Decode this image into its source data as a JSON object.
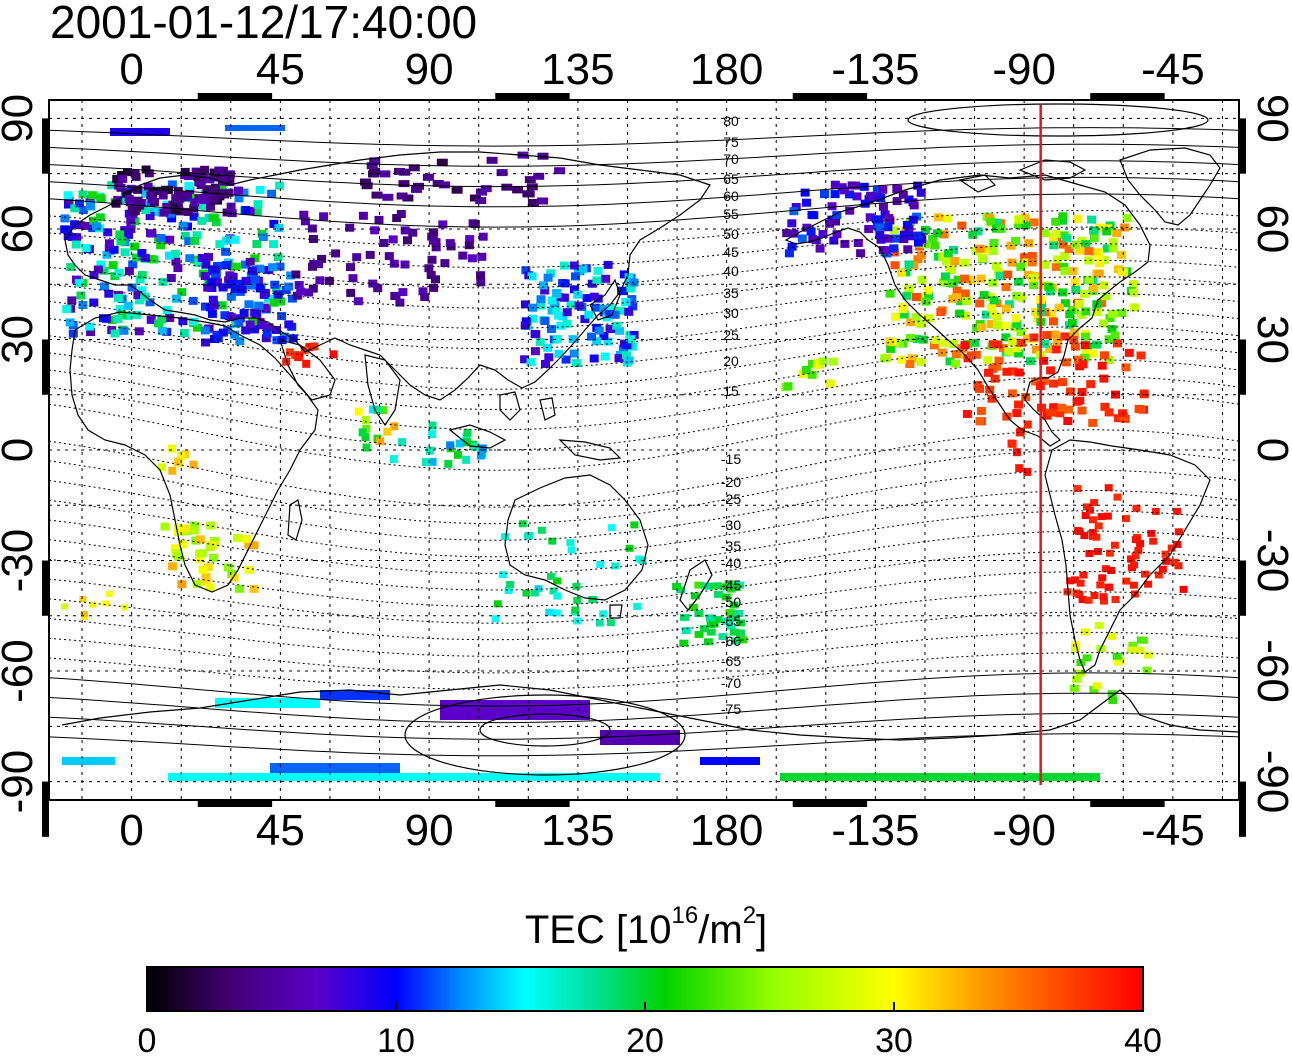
{
  "title": "2001-01-12/17:40:00",
  "map": {
    "lon_ticks_top": [
      "0",
      "45",
      "90",
      "135",
      "180",
      "-135",
      "-90",
      "-45"
    ],
    "lon_ticks_bottom": [
      "0",
      "45",
      "90",
      "135",
      "180",
      "-135",
      "-90",
      "-45"
    ],
    "lat_ticks_left": [
      "90",
      "60",
      "30",
      "0",
      "-30",
      "-60",
      "-90"
    ],
    "lat_ticks_right": [
      "90",
      "60",
      "30",
      "0",
      "-30",
      "-60",
      "-90"
    ],
    "lon_range": [
      -25,
      335
    ],
    "lat_range": [
      -95,
      95
    ],
    "contour_labels_north": [
      "80",
      "75",
      "70",
      "65",
      "60",
      "55",
      "50",
      "45",
      "40",
      "35",
      "30",
      "25",
      "20",
      "15"
    ],
    "contour_labels_south": [
      "-15",
      "-20",
      "-25",
      "-30",
      "-35",
      "-40",
      "-45",
      "-50",
      "-55",
      "-60",
      "-65",
      "-70",
      "-75"
    ],
    "meridian_line_lon": 275,
    "meridian_line_color": "#e8141a",
    "coastline_color": "#000000"
  },
  "colorbar": {
    "label_main": "TEC  [10",
    "label_exp1": "16",
    "label_mid": "/m",
    "label_exp2": "2",
    "label_end": "]",
    "ticks": [
      "0",
      "10",
      "20",
      "30",
      "40"
    ],
    "range": [
      0,
      40
    ],
    "colors": [
      "#000000",
      "#40006e",
      "#5a00c8",
      "#0000ff",
      "#0096ff",
      "#00ffff",
      "#00e096",
      "#00d200",
      "#96ff00",
      "#ffff00",
      "#ff9600",
      "#ff4600",
      "#ff0000"
    ]
  }
}
